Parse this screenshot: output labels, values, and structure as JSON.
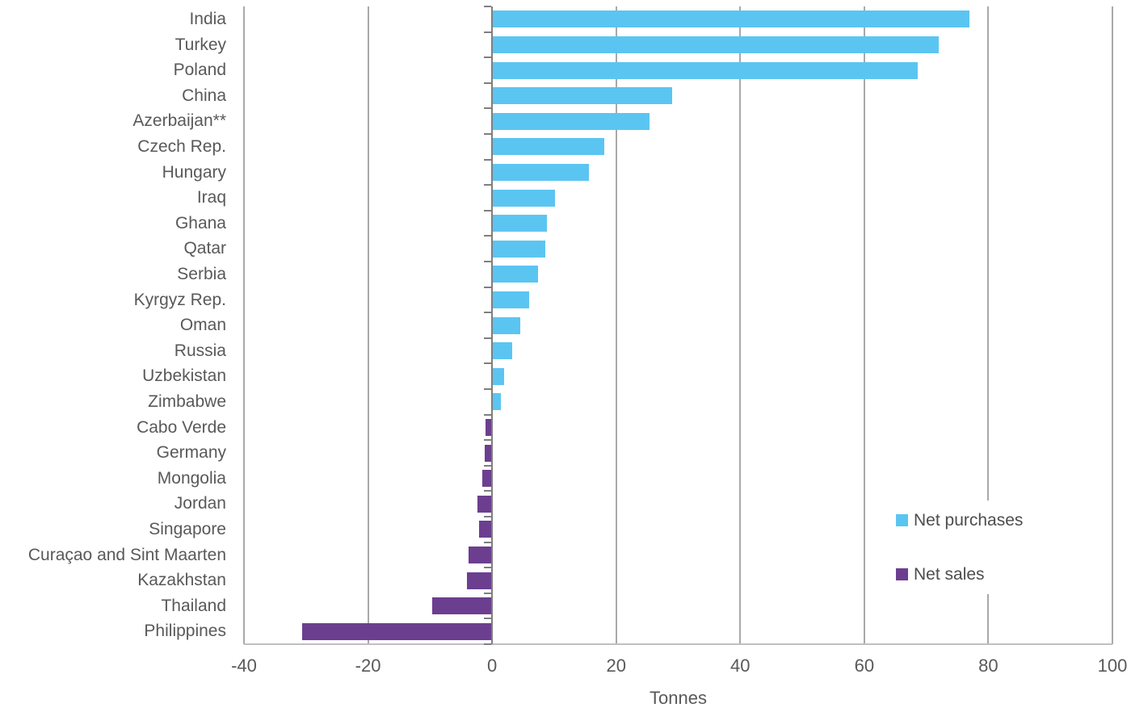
{
  "chart_data": {
    "type": "bar",
    "orientation": "horizontal",
    "xlabel": "Tonnes",
    "xlim": [
      -40,
      100
    ],
    "xticks": [
      -40,
      -20,
      0,
      20,
      40,
      60,
      80,
      100
    ],
    "grid": true,
    "legend_position": "right-middle",
    "legend": [
      {
        "label": "Net purchases",
        "color": "#5BC5F2"
      },
      {
        "label": "Net sales",
        "color": "#6C3E90"
      }
    ],
    "categories": [
      "India",
      "Turkey",
      "Poland",
      "China",
      "Azerbaijan**",
      "Czech Rep.",
      "Hungary",
      "Iraq",
      "Ghana",
      "Qatar",
      "Serbia",
      "Kyrgyz Rep.",
      "Oman",
      "Russia",
      "Uzbekistan",
      "Zimbabwe",
      "Cabo Verde",
      "Germany",
      "Mongolia",
      "Jordan",
      "Singapore",
      "Curaçao and Sint Maarten",
      "Kazakhstan",
      "Thailand",
      "Philippines"
    ],
    "values": [
      77,
      72,
      68.6,
      29,
      25.4,
      18.1,
      15.6,
      10.2,
      8.8,
      8.6,
      7.4,
      6,
      4.5,
      3.2,
      2,
      1.4,
      -1,
      -1.2,
      -1.6,
      -2.4,
      -2.1,
      -3.8,
      -4,
      -9.6,
      -30.6
    ]
  },
  "colors": {
    "net_purchases": "#5BC5F2",
    "net_sales": "#6C3E90",
    "gridline": "#A9A9A9",
    "zero_axis": "#7F7F7F",
    "baseline": "#BFBFBF",
    "text": "#595959"
  }
}
